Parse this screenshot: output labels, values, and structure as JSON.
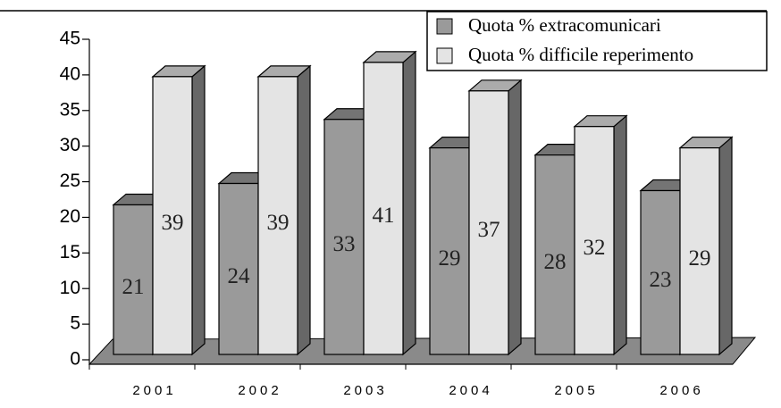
{
  "chart_data": {
    "type": "bar3d",
    "categories": [
      "2001",
      "2002",
      "2003",
      "2004",
      "2005",
      "2006"
    ],
    "series": [
      {
        "name": "Quota % extracomunicari",
        "color": "#9a9a9a",
        "values": [
          21,
          24,
          33,
          29,
          28,
          23
        ]
      },
      {
        "name": "Quota % difficile reperimento",
        "color": "#e4e4e4",
        "values": [
          39,
          39,
          41,
          37,
          32,
          29
        ]
      }
    ],
    "ylim": [
      0,
      45
    ],
    "yticks": [
      0,
      5,
      10,
      15,
      20,
      25,
      30,
      35,
      40,
      45
    ],
    "legend": "top-right"
  }
}
